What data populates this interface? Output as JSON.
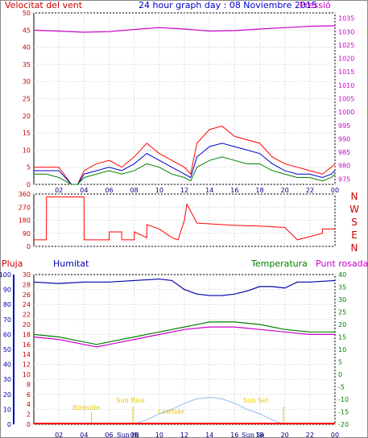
{
  "chart_data": [
    {
      "title": "24 hour graph day : 08 Noviembre 2015",
      "type": "line",
      "left_label": "Velocitat del vent",
      "right_label": "Pressió",
      "x_ticks": [
        "02",
        "04",
        "06",
        "08",
        "10",
        "12",
        "14",
        "16",
        "18",
        "20",
        "22",
        "00"
      ],
      "y_ticks_left": [
        0,
        5,
        10,
        15,
        20,
        25,
        30,
        35,
        40,
        45,
        50
      ],
      "y_ticks_right": [
        975,
        980,
        985,
        990,
        995,
        1000,
        1005,
        1010,
        1015,
        1020,
        1025,
        1030,
        1035
      ],
      "ylim_left": [
        0,
        50
      ],
      "ylim_right": [
        973,
        1037
      ],
      "series": [
        {
          "key": "gust",
          "color": "#ff0000",
          "hours": [
            0,
            1,
            2,
            3,
            3.5,
            4,
            5,
            6,
            7,
            8,
            9,
            10,
            11,
            12,
            12.5,
            13,
            14,
            15,
            16,
            17,
            18,
            19,
            20,
            21,
            22,
            23,
            23.7,
            24
          ],
          "values": [
            5,
            5,
            5,
            0,
            0,
            4,
            6,
            7,
            5,
            8,
            12,
            9,
            7,
            5,
            3,
            12,
            16,
            17,
            14,
            13,
            12,
            8,
            6,
            5,
            4,
            3,
            5,
            6
          ]
        },
        {
          "key": "avg",
          "color": "#0000cc",
          "hours": [
            0,
            1,
            2,
            3,
            3.5,
            4,
            5,
            6,
            7,
            8,
            9,
            10,
            11,
            12,
            12.5,
            13,
            14,
            15,
            16,
            17,
            18,
            19,
            20,
            21,
            22,
            23,
            23.7,
            24
          ],
          "values": [
            4,
            4,
            4,
            0,
            0,
            3,
            4,
            5,
            4,
            6,
            9,
            7,
            5,
            3,
            2,
            8,
            11,
            12,
            11,
            10,
            9,
            6,
            4,
            3,
            3,
            2,
            3,
            4
          ]
        },
        {
          "key": "wind",
          "color": "#008000",
          "hours": [
            0,
            1,
            2,
            3,
            3.5,
            4,
            5,
            6,
            7,
            8,
            9,
            10,
            11,
            12,
            12.5,
            13,
            14,
            15,
            16,
            17,
            18,
            19,
            20,
            21,
            22,
            23,
            23.7,
            24
          ],
          "values": [
            3,
            3,
            2,
            0,
            0,
            2,
            3,
            4,
            3,
            4,
            6,
            5,
            3,
            2,
            1,
            5,
            7,
            8,
            7,
            6,
            6,
            4,
            3,
            2,
            2,
            1,
            2,
            3
          ]
        },
        {
          "key": "pressure",
          "color": "#cc00cc",
          "hours": [
            0,
            2,
            4,
            6,
            8,
            10,
            12,
            14,
            16,
            18,
            20,
            22,
            24
          ],
          "values": [
            1030.5,
            1030.2,
            1029.8,
            1030.0,
            1030.8,
            1031.5,
            1031.0,
            1030.2,
            1030.4,
            1031.0,
            1031.5,
            1032.0,
            1032.2
          ]
        }
      ]
    },
    {
      "type": "line",
      "right_label": [
        "N",
        "W",
        "S",
        "E",
        "N"
      ],
      "y_ticks": [
        0,
        90,
        180,
        270,
        360
      ],
      "ylim": [
        0,
        360
      ],
      "series": [
        {
          "key": "direction",
          "color": "#ff0000",
          "hours": [
            0,
            1,
            1.01,
            4,
            4.01,
            6,
            6.01,
            7,
            7.01,
            8,
            8.01,
            9,
            9,
            10,
            11,
            11.5,
            12,
            12.2,
            13,
            16,
            18,
            20,
            21,
            21.01,
            23,
            23.01,
            24
          ],
          "values": [
            45,
            45,
            340,
            340,
            45,
            45,
            100,
            100,
            45,
            45,
            100,
            60,
            150,
            120,
            60,
            45,
            180,
            290,
            160,
            145,
            140,
            130,
            45,
            45,
            90,
            120,
            120
          ]
        }
      ]
    },
    {
      "type": "line",
      "labels": {
        "rain": "Pluja",
        "humidity": "Humitat",
        "temperature": "Temperatura",
        "dewpoint": "Punt rosada"
      },
      "x_ticks": [
        "02",
        "04",
        "06",
        "08",
        "10",
        "12",
        "14",
        "16",
        "18",
        "20",
        "22",
        "00"
      ],
      "y_ticks_humidity": [
        0,
        10,
        20,
        30,
        40,
        50,
        60,
        70,
        80,
        90,
        100
      ],
      "y_ticks_rain": [
        0,
        2,
        4,
        6,
        8,
        10,
        12,
        14,
        16,
        18,
        20,
        22,
        24,
        26,
        28,
        30
      ],
      "y_ticks_temp": [
        -20,
        -15,
        -10,
        -5,
        0,
        5,
        10,
        15,
        20,
        25,
        30,
        35,
        40
      ],
      "ylim_humidity": [
        0,
        100
      ],
      "ylim_temp": [
        -20,
        40
      ],
      "annotations": {
        "birdside": "Birdside",
        "sunrise": "Sun Rise",
        "sunset": "Sun Set",
        "lowtide": "Lowtide",
        "sun_left": "Sun Hi",
        "sun_right": "Sun Se"
      },
      "series": [
        {
          "key": "humidity",
          "color": "#0000aa",
          "hours": [
            0,
            2,
            4,
            6,
            8,
            10,
            11,
            12,
            13,
            14,
            15,
            16,
            17,
            18,
            19,
            20,
            21,
            22,
            24
          ],
          "values": [
            95,
            94,
            95,
            95,
            96,
            97,
            96,
            90,
            87,
            86,
            86,
            87,
            89,
            92,
            92,
            91,
            95,
            95,
            96
          ]
        },
        {
          "key": "temperature",
          "color": "#008000",
          "hours": [
            0,
            2,
            4,
            5,
            6,
            8,
            10,
            12,
            14,
            16,
            18,
            20,
            22,
            24
          ],
          "values": [
            16,
            15,
            13,
            12,
            13,
            15,
            17,
            19,
            21,
            21,
            20,
            18,
            17,
            17
          ]
        },
        {
          "key": "dewpoint",
          "color": "#cc00cc",
          "hours": [
            0,
            2,
            4,
            5,
            6,
            8,
            10,
            12,
            14,
            16,
            18,
            20,
            22,
            24
          ],
          "values": [
            15,
            14,
            12,
            11,
            12,
            14,
            16,
            18,
            19,
            19,
            18,
            17,
            16,
            16
          ]
        },
        {
          "key": "solar",
          "color": "#8fbaf0",
          "hours": [
            7.9,
            9,
            10,
            11,
            12,
            13,
            14,
            15,
            16,
            17,
            18,
            19,
            19.9
          ],
          "values": [
            0,
            3,
            7,
            10,
            14,
            17,
            18,
            17,
            14,
            10,
            7,
            3,
            0
          ]
        }
      ]
    }
  ]
}
